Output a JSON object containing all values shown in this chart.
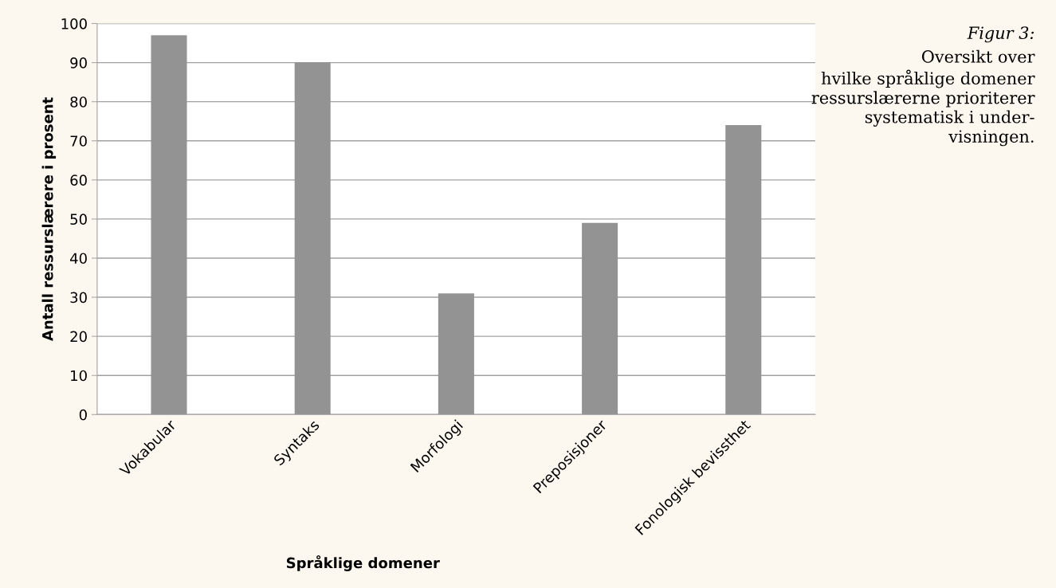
{
  "chart_data": {
    "type": "bar",
    "title": "Figur 3:",
    "subtitle": "Oversikt over\nhvilke språklige domener\nressurslærerne prioriterer\nsystematisk i under-\nvisningen.",
    "xlabel": "Språklige domener",
    "ylabel": "Antall ressurslærere i prosent",
    "categories": [
      "Vokabular",
      "Syntaks",
      "Morfologi",
      "Preposisjoner",
      "Fonologisk bevissthet"
    ],
    "values": [
      97,
      90,
      31,
      49,
      74
    ],
    "color": "#939393",
    "ylim": [
      0,
      100
    ],
    "yticks": [
      0,
      10,
      20,
      30,
      40,
      50,
      60,
      70,
      80,
      90,
      100
    ],
    "grid": "y"
  }
}
